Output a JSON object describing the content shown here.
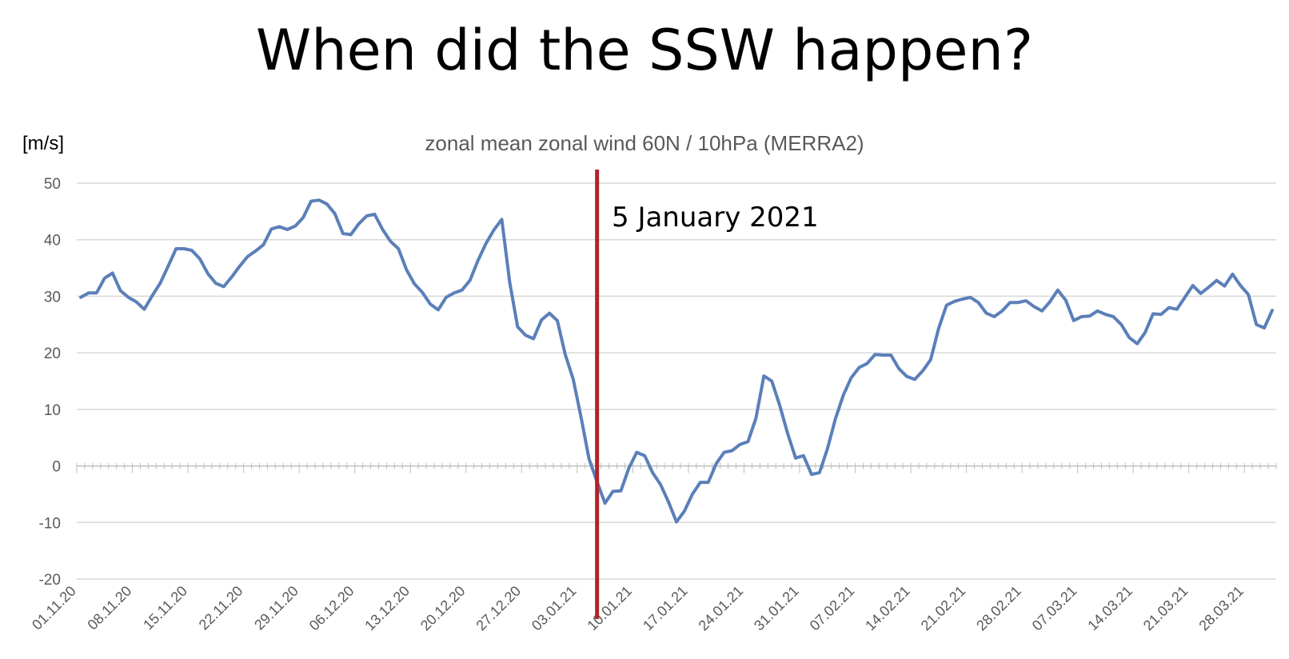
{
  "title": "When did the SSW happen?",
  "chart_data": {
    "type": "line",
    "title": "zonal mean zonal wind 60N / 10hPa (MERRA2)",
    "ylabel": "[m/s]",
    "xlabel": "",
    "ylim": [
      -20,
      50
    ],
    "yticks": [
      "50",
      "40",
      "30",
      "20",
      "10",
      "0",
      "-10",
      "-20"
    ],
    "grid": true,
    "x_start": "01.11.20",
    "xticks": [
      "01.11.20",
      "08.11.20",
      "15.11.20",
      "22.11.20",
      "29.11.20",
      "06.12.20",
      "13.12.20",
      "20.12.20",
      "27.12.20",
      "03.01.21",
      "10.01.21",
      "17.01.21",
      "24.01.21",
      "31.01.21",
      "07.02.21",
      "14.02.21",
      "21.02.21",
      "28.02.21",
      "07.03.21",
      "14.03.21",
      "21.03.21",
      "28.03.21"
    ],
    "series": [
      {
        "color": "#5b7fb9",
        "values": [
          29.8,
          30.6,
          30.6,
          33.2,
          34.1,
          31.0,
          29.8,
          29.0,
          27.7,
          30.1,
          32.3,
          35.3,
          38.4,
          38.4,
          38.1,
          36.6,
          34.0,
          32.3,
          31.7,
          33.4,
          35.3,
          37.0,
          38.0,
          39.1,
          41.9,
          42.3,
          41.8,
          42.4,
          43.9,
          46.8,
          47.0,
          46.3,
          44.6,
          41.1,
          40.9,
          42.8,
          44.2,
          44.5,
          41.8,
          39.7,
          38.4,
          34.7,
          32.2,
          30.7,
          28.6,
          27.6,
          29.8,
          30.6,
          31.1,
          32.8,
          36.3,
          39.3,
          41.7,
          43.6,
          32.5,
          24.6,
          23.1,
          22.5,
          25.8,
          27.0,
          25.7,
          19.7,
          15.3,
          8.5,
          1.2,
          -2.8,
          -6.6,
          -4.5,
          -4.4,
          -0.4,
          2.4,
          1.8,
          -1.2,
          -3.3,
          -6.4,
          -9.9,
          -8.0,
          -5.0,
          -2.9,
          -2.9,
          0.4,
          2.4,
          2.7,
          3.8,
          4.3,
          8.4,
          15.9,
          15.0,
          10.7,
          5.7,
          1.4,
          1.8,
          -1.5,
          -1.2,
          3.0,
          8.3,
          12.5,
          15.6,
          17.4,
          18.1,
          19.7,
          19.6,
          19.6,
          17.2,
          15.8,
          15.3,
          16.8,
          18.8,
          24.3,
          28.4,
          29.1,
          29.5,
          29.8,
          28.9,
          27.0,
          26.4,
          27.4,
          28.9,
          28.9,
          29.2,
          28.2,
          27.4,
          29.0,
          31.1,
          29.3,
          25.7,
          26.4,
          26.5,
          27.4,
          26.8,
          26.4,
          25.0,
          22.7,
          21.6,
          23.6,
          26.9,
          26.8,
          28.0,
          27.7,
          29.8,
          31.9,
          30.5,
          31.6,
          32.8,
          31.8,
          33.9,
          31.9,
          30.3,
          25.0,
          24.4,
          27.5
        ]
      }
    ],
    "annotations": [
      {
        "type": "vertical-line",
        "x": "05.01.21",
        "color": "#b0252a",
        "label": "5 January 2021"
      }
    ]
  }
}
